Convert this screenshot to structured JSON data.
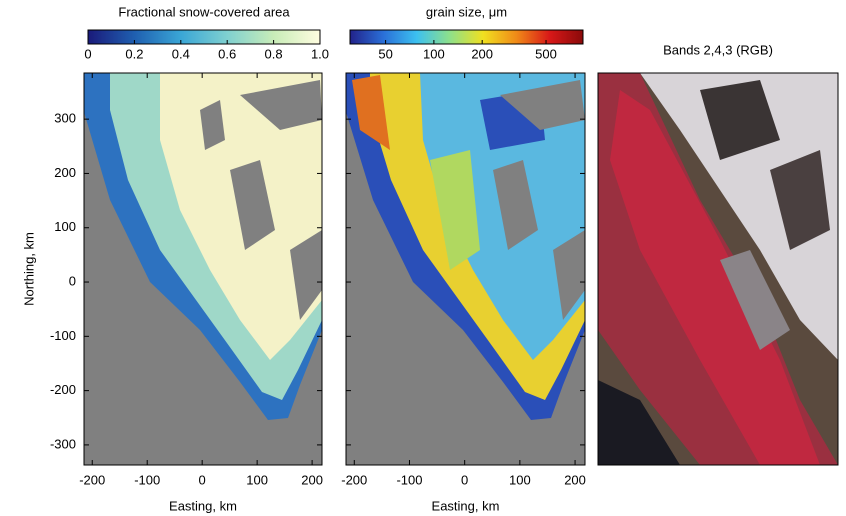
{
  "chart_data": [
    {
      "type": "map",
      "title": "Fractional snow-covered area",
      "colorbar_lim": [
        0,
        1
      ],
      "colorbar_ticks": [
        0,
        0.2,
        0.4,
        0.6,
        0.8,
        {
          "value": 1,
          "label": "1.0"
        }
      ],
      "colorbar_log": false,
      "colors": [
        "#1a1a7a",
        "#1f5fb0",
        "#3aa6d6",
        "#7fd0d0",
        "#c8ecb8",
        "#fffde0"
      ],
      "xlabel": "Easting, km",
      "ylabel": "Northing, km",
      "xlim": [
        -215,
        218
      ],
      "xticks": [
        -200,
        -100,
        0,
        100,
        200
      ],
      "ylim": [
        -337,
        385
      ],
      "yticks": [
        -300,
        -200,
        -100,
        0,
        100,
        200,
        300
      ]
    },
    {
      "type": "map",
      "title": "grain size, μm",
      "colorbar_lim": [
        30,
        850
      ],
      "colorbar_ticks": [
        50,
        100,
        200,
        500
      ],
      "colorbar_log": true,
      "colors": [
        "#22228a",
        "#2a6fd8",
        "#3cc0f0",
        "#8ee08a",
        "#f0e020",
        "#f08a18",
        "#d81818",
        "#8a0a0a"
      ],
      "xlabel": "Easting, km",
      "xlim": [
        -215,
        218
      ],
      "xticks": [
        -200,
        -100,
        0,
        100,
        200
      ]
    },
    {
      "type": "image",
      "title": "Bands 2,4,3 (RGB)"
    }
  ]
}
